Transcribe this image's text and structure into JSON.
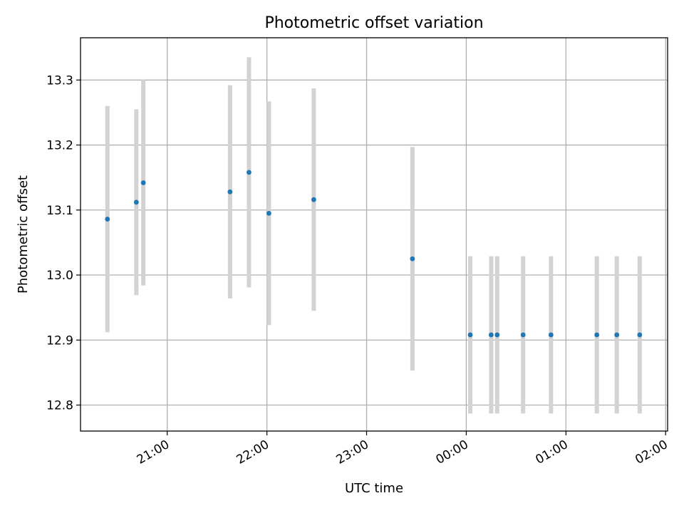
{
  "chart_data": {
    "type": "scatter",
    "title": "Photometric offset variation",
    "xlabel": "UTC time",
    "ylabel": "Photometric offset",
    "x_unit": "hours",
    "xlim": [
      20.13,
      26.02
    ],
    "ylim": [
      12.76,
      13.365
    ],
    "x_ticks": [
      {
        "value": 21,
        "label": "21:00"
      },
      {
        "value": 22,
        "label": "22:00"
      },
      {
        "value": 23,
        "label": "23:00"
      },
      {
        "value": 24,
        "label": "00:00"
      },
      {
        "value": 25,
        "label": "01:00"
      },
      {
        "value": 26,
        "label": "02:00"
      }
    ],
    "y_ticks": [
      {
        "value": 12.8,
        "label": "12.8"
      },
      {
        "value": 12.9,
        "label": "12.9"
      },
      {
        "value": 13.0,
        "label": "13.0"
      },
      {
        "value": 13.1,
        "label": "13.1"
      },
      {
        "value": 13.2,
        "label": "13.2"
      },
      {
        "value": 13.3,
        "label": "13.3"
      }
    ],
    "grid": true,
    "colors": {
      "points": "#1f77b4",
      "errorbars": "#d3d3d3",
      "grid": "#b0b0b0"
    },
    "series": [
      {
        "points": [
          {
            "x": 20.4,
            "y": 13.086,
            "err": 0.174
          },
          {
            "x": 20.69,
            "y": 13.112,
            "err": 0.143
          },
          {
            "x": 20.76,
            "y": 13.142,
            "err": 0.158
          },
          {
            "x": 21.63,
            "y": 13.128,
            "err": 0.164
          },
          {
            "x": 21.82,
            "y": 13.158,
            "err": 0.177
          },
          {
            "x": 22.02,
            "y": 13.095,
            "err": 0.172
          },
          {
            "x": 22.47,
            "y": 13.116,
            "err": 0.171
          },
          {
            "x": 23.46,
            "y": 13.025,
            "err": 0.172
          },
          {
            "x": 24.04,
            "y": 12.908,
            "err": 0.121
          },
          {
            "x": 24.25,
            "y": 12.908,
            "err": 0.121
          },
          {
            "x": 24.31,
            "y": 12.908,
            "err": 0.121
          },
          {
            "x": 24.57,
            "y": 12.908,
            "err": 0.121
          },
          {
            "x": 24.85,
            "y": 12.908,
            "err": 0.121
          },
          {
            "x": 25.31,
            "y": 12.908,
            "err": 0.121
          },
          {
            "x": 25.51,
            "y": 12.908,
            "err": 0.121
          },
          {
            "x": 25.74,
            "y": 12.908,
            "err": 0.121
          }
        ]
      }
    ]
  }
}
